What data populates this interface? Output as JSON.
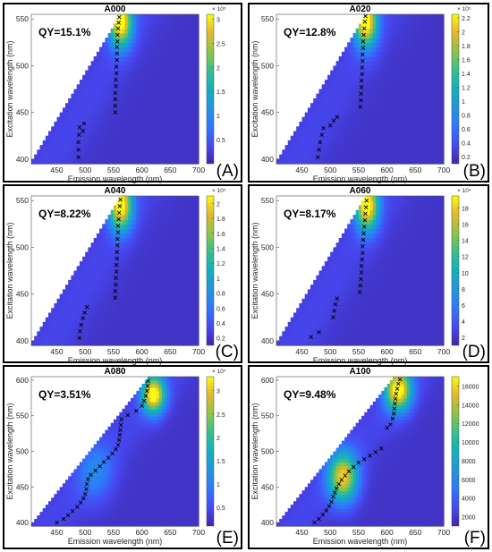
{
  "chart_data": [
    {
      "type": "heatmap",
      "panel_tag": "(A)",
      "title": "A000",
      "annotation": "QY=15.1%",
      "xlabel": "Emission wavelength (nm)",
      "ylabel": "Excitation wavelength (nm)",
      "xlim": [
        405,
        700
      ],
      "ylim": [
        395,
        555
      ],
      "xticks": [
        450,
        500,
        550,
        600,
        650,
        700
      ],
      "yticks": [
        400,
        450,
        500,
        550
      ],
      "colorbar": {
        "min": 0,
        "max": 3.1,
        "ticks": [
          0.5,
          1,
          1.5,
          2,
          2.5,
          3
        ],
        "labels": [
          "0.5",
          "1",
          "1.5",
          "2",
          "2.5",
          "3"
        ],
        "exponent": "× 10⁵"
      },
      "hotspots": [
        {
          "em": 560,
          "ex": 545,
          "s_em": 14,
          "s_ex": 18,
          "amp": 1.0
        }
      ],
      "series": [
        {
          "points": [
            [
              488,
              402
            ],
            [
              488,
              410
            ],
            [
              488,
              418
            ],
            [
              489,
              426
            ],
            [
              490,
              434
            ]
          ]
        },
        {
          "points": [
            [
              496,
              430
            ],
            [
              498,
              438
            ]
          ]
        },
        {
          "points": [
            [
              553,
              450
            ],
            [
              553,
              457
            ],
            [
              553,
              464
            ],
            [
              553,
              471
            ],
            [
              554,
              478
            ],
            [
              554,
              485
            ],
            [
              555,
              492
            ],
            [
              555,
              499
            ],
            [
              556,
              506
            ],
            [
              556,
              513
            ],
            [
              556,
              520
            ],
            [
              557,
              526
            ],
            [
              557,
              533
            ],
            [
              558,
              540
            ],
            [
              559,
              546
            ],
            [
              560,
              552
            ]
          ]
        }
      ]
    },
    {
      "type": "heatmap",
      "panel_tag": "(B)",
      "title": "A020",
      "annotation": "QY=12.8%",
      "xlabel": "Emission wavelength (nm)",
      "ylabel": "Excitation wavelength (nm)",
      "xlim": [
        405,
        700
      ],
      "ylim": [
        395,
        555
      ],
      "xticks": [
        450,
        500,
        550,
        600,
        650,
        700
      ],
      "yticks": [
        400,
        450,
        500,
        550
      ],
      "colorbar": {
        "min": 0.1,
        "max": 2.25,
        "ticks": [
          0.2,
          0.4,
          0.6,
          0.8,
          1,
          1.2,
          1.4,
          1.6,
          1.8,
          2,
          2.2
        ],
        "labels": [
          "0.2",
          "0.4",
          "0.6",
          "0.8",
          "1",
          "1.2",
          "1.4",
          "1.6",
          "1.8",
          "2",
          "2.2"
        ],
        "exponent": "× 10⁵"
      },
      "hotspots": [
        {
          "em": 560,
          "ex": 545,
          "s_em": 14,
          "s_ex": 18,
          "amp": 1.0
        }
      ],
      "series": [
        {
          "points": [
            [
              478,
              402
            ],
            [
              480,
              410
            ],
            [
              482,
              418
            ],
            [
              485,
              426
            ],
            [
              488,
              433
            ]
          ]
        },
        {
          "points": [
            [
              500,
              436
            ],
            [
              506,
              441
            ],
            [
              512,
              445
            ]
          ]
        },
        {
          "points": [
            [
              553,
              456
            ],
            [
              554,
              463
            ],
            [
              554,
              470
            ],
            [
              555,
              477
            ],
            [
              555,
              484
            ],
            [
              556,
              491
            ],
            [
              556,
              498
            ],
            [
              557,
              505
            ],
            [
              557,
              512
            ],
            [
              558,
              519
            ],
            [
              558,
              526
            ],
            [
              559,
              533
            ],
            [
              560,
              540
            ],
            [
              561,
              547
            ],
            [
              562,
              553
            ]
          ]
        }
      ]
    },
    {
      "type": "heatmap",
      "panel_tag": "(C)",
      "title": "A040",
      "annotation": "QY=8.22%",
      "xlabel": "Emission wavelength (nm)",
      "ylabel": "Excitation wavelength (nm)",
      "xlim": [
        405,
        700
      ],
      "ylim": [
        395,
        555
      ],
      "xticks": [
        450,
        500,
        550,
        600,
        650,
        700
      ],
      "yticks": [
        400,
        450,
        500,
        550
      ],
      "colorbar": {
        "min": 0.1,
        "max": 2.1,
        "ticks": [
          0.2,
          0.4,
          0.6,
          0.8,
          1,
          1.2,
          1.4,
          1.6,
          1.8,
          2
        ],
        "labels": [
          "0.2",
          "0.4",
          "0.6",
          "0.8",
          "1",
          "1.2",
          "1.4",
          "1.6",
          "1.8",
          "2"
        ],
        "exponent": "× 10⁵"
      },
      "hotspots": [
        {
          "em": 560,
          "ex": 543,
          "s_em": 14,
          "s_ex": 18,
          "amp": 1.0
        }
      ],
      "series": [
        {
          "points": [
            [
              490,
              403
            ],
            [
              491,
              410
            ],
            [
              493,
              417
            ],
            [
              496,
              424
            ],
            [
              499,
              430
            ],
            [
              503,
              436
            ]
          ]
        },
        {
          "points": [
            [
              553,
              446
            ],
            [
              553,
              453
            ],
            [
              554,
              460
            ],
            [
              554,
              467
            ],
            [
              555,
              474
            ],
            [
              555,
              481
            ],
            [
              556,
              488
            ],
            [
              556,
              495
            ],
            [
              557,
              502
            ],
            [
              557,
              509
            ],
            [
              558,
              516
            ],
            [
              558,
              523
            ],
            [
              559,
              530
            ],
            [
              560,
              537
            ],
            [
              561,
              544
            ],
            [
              562,
              551
            ]
          ]
        }
      ]
    },
    {
      "type": "heatmap",
      "panel_tag": "(D)",
      "title": "A060",
      "annotation": "QY=8.17%",
      "xlabel": "Emission wavelength (nm)",
      "ylabel": "Excitation wavelength (nm)",
      "xlim": [
        405,
        700
      ],
      "ylim": [
        395,
        555
      ],
      "xticks": [
        450,
        500,
        550,
        600,
        650,
        700
      ],
      "yticks": [
        400,
        450,
        500,
        550
      ],
      "colorbar": {
        "min": 1,
        "max": 19.5,
        "ticks": [
          2,
          4,
          6,
          8,
          10,
          12,
          14,
          16,
          18
        ],
        "labels": [
          "2",
          "4",
          "6",
          "8",
          "10",
          "12",
          "14",
          "16",
          "18"
        ],
        "exponent": "× 10⁴"
      },
      "hotspots": [
        {
          "em": 562,
          "ex": 543,
          "s_em": 14,
          "s_ex": 18,
          "amp": 1.0
        }
      ],
      "series": [
        {
          "points": [
            [
              466,
              404
            ],
            [
              480,
              409
            ]
          ]
        },
        {
          "points": [
            [
              505,
              425
            ],
            [
              507,
              432
            ],
            [
              509,
              439
            ],
            [
              512,
              445
            ]
          ]
        },
        {
          "points": [
            [
              552,
              452
            ],
            [
              553,
              459
            ],
            [
              554,
              466
            ],
            [
              555,
              473
            ],
            [
              555,
              480
            ],
            [
              556,
              487
            ],
            [
              557,
              494
            ],
            [
              557,
              501
            ],
            [
              558,
              508
            ],
            [
              559,
              515
            ],
            [
              560,
              522
            ],
            [
              561,
              529
            ],
            [
              562,
              536
            ],
            [
              563,
              543
            ],
            [
              564,
              550
            ]
          ]
        }
      ]
    },
    {
      "type": "heatmap",
      "panel_tag": "(E)",
      "title": "A080",
      "annotation": "QY=3.51%",
      "xlabel": "Emission wavelength (nm)",
      "ylabel": "Excitation wavelength (nm)",
      "xlim": [
        405,
        700
      ],
      "ylim": [
        395,
        605
      ],
      "xticks": [
        450,
        500,
        550,
        600,
        650,
        700
      ],
      "yticks": [
        400,
        450,
        500,
        550,
        600
      ],
      "colorbar": {
        "min": 0.1,
        "max": 3.3,
        "ticks": [
          0.5,
          1,
          1.5,
          2,
          2.5,
          3
        ],
        "labels": [
          "0.5",
          "1",
          "1.5",
          "2",
          "2.5",
          "3"
        ],
        "exponent": "× 10⁴"
      },
      "hotspots": [
        {
          "em": 618,
          "ex": 578,
          "s_em": 14,
          "s_ex": 18,
          "amp": 1.0
        },
        {
          "em": 515,
          "ex": 470,
          "s_em": 22,
          "s_ex": 28,
          "amp": 0.22
        }
      ],
      "series": [
        {
          "points": [
            [
              450,
              400
            ],
            [
              462,
              405
            ],
            [
              470,
              410
            ],
            [
              478,
              416
            ],
            [
              486,
              422
            ],
            [
              492,
              428
            ],
            [
              497,
              434
            ],
            [
              500,
              440
            ],
            [
              502,
              447
            ],
            [
              503,
              454
            ],
            [
              505,
              461
            ],
            [
              510,
              467
            ],
            [
              518,
              473
            ],
            [
              526,
              479
            ],
            [
              533,
              485
            ],
            [
              541,
              491
            ],
            [
              548,
              497
            ],
            [
              554,
              503
            ],
            [
              558,
              509
            ],
            [
              560,
              516
            ],
            [
              561,
              523
            ],
            [
              562,
              530
            ],
            [
              563,
              537
            ],
            [
              564,
              545
            ],
            [
              575,
              551
            ],
            [
              590,
              557
            ],
            [
              600,
              564
            ],
            [
              604,
              571
            ],
            [
              607,
              578
            ],
            [
              609,
              585
            ],
            [
              610,
              592
            ],
            [
              611,
              599
            ]
          ]
        }
      ]
    },
    {
      "type": "heatmap",
      "panel_tag": "(F)",
      "title": "A100",
      "annotation": "QY=9.48%",
      "xlabel": "Emission wavelength (nm)",
      "ylabel": "Excitation wavelength (nm)",
      "xlim": [
        405,
        700
      ],
      "ylim": [
        395,
        605
      ],
      "xticks": [
        450,
        500,
        550,
        600,
        650,
        700
      ],
      "yticks": [
        400,
        450,
        500,
        550,
        600
      ],
      "colorbar": {
        "min": 1000,
        "max": 17000,
        "ticks": [
          2000,
          4000,
          6000,
          8000,
          10000,
          12000,
          14000,
          16000
        ],
        "labels": [
          "2000",
          "4000",
          "6000",
          "8000",
          "10000",
          "12000",
          "14000",
          "16000"
        ],
        "exponent": ""
      },
      "hotspots": [
        {
          "em": 617,
          "ex": 585,
          "s_em": 16,
          "s_ex": 20,
          "amp": 1.0
        },
        {
          "em": 520,
          "ex": 462,
          "s_em": 18,
          "s_ex": 24,
          "amp": 0.85
        }
      ],
      "series": [
        {
          "points": [
            [
              472,
              400
            ],
            [
              480,
              405
            ],
            [
              487,
              411
            ],
            [
              493,
              417
            ],
            [
              498,
              423
            ],
            [
              502,
              429
            ],
            [
              505,
              436
            ],
            [
              508,
              442
            ],
            [
              511,
              448
            ],
            [
              515,
              454
            ],
            [
              520,
              460
            ],
            [
              526,
              466
            ],
            [
              533,
              472
            ],
            [
              541,
              478
            ],
            [
              550,
              484
            ],
            [
              560,
              489
            ],
            [
              570,
              494
            ],
            [
              580,
              499
            ],
            [
              590,
              504
            ],
            [
              600,
              533
            ],
            [
              606,
              538
            ],
            [
              610,
              546
            ],
            [
              612,
              553
            ],
            [
              613,
              560
            ],
            [
              614,
              567
            ],
            [
              615,
              574
            ],
            [
              616,
              581
            ],
            [
              618,
              588
            ],
            [
              620,
              595
            ],
            [
              623,
              601
            ]
          ]
        }
      ]
    }
  ]
}
